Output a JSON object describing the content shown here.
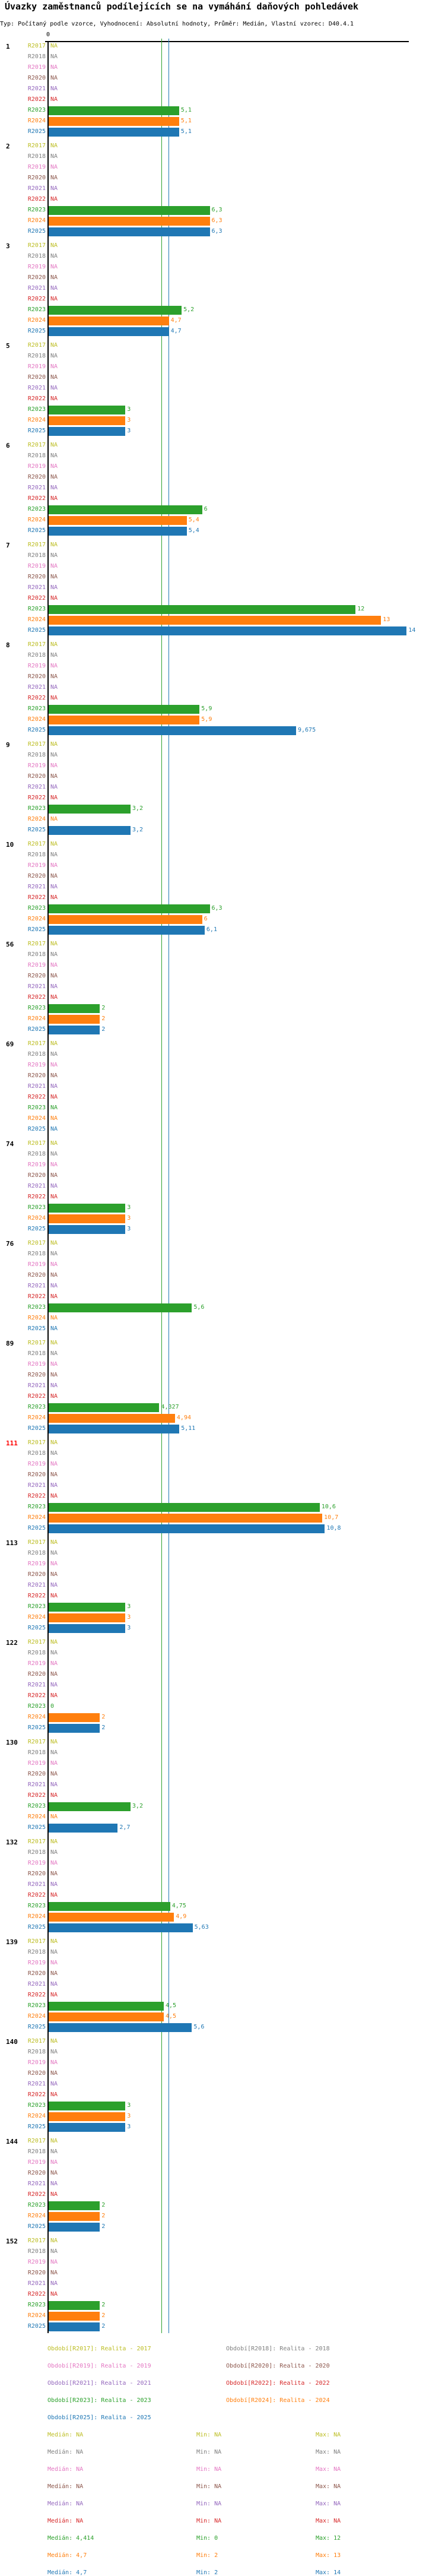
{
  "title": "Úvazky zaměstnanců podílejících se na vymáhání daňových pohledávek",
  "subtitle": "Typ: Počítaný podle vzorce, Vyhodnocení: Absolutní hodnoty, Průměr: Medián, Vlastní vzorec: D40.4.1",
  "chart_data": {
    "type": "bar",
    "orientation": "horizontal",
    "x_tick_label": "0",
    "xlim": [
      0,
      14
    ],
    "series": [
      {
        "name": "R2017",
        "legend": "Období[R2017]: Realita - 2017",
        "color": "#bcbd22"
      },
      {
        "name": "R2018",
        "legend": "Období[R2018]: Realita - 2018",
        "color": "#7f7f7f"
      },
      {
        "name": "R2019",
        "legend": "Období[R2019]: Realita - 2019",
        "color": "#e377c2"
      },
      {
        "name": "R2020",
        "legend": "Období[R2020]: Realita - 2020",
        "color": "#8c564b"
      },
      {
        "name": "R2021",
        "legend": "Období[R2021]: Realita - 2021",
        "color": "#9467bd"
      },
      {
        "name": "R2022",
        "legend": "Období[R2022]: Realita - 2022",
        "color": "#d62728"
      },
      {
        "name": "R2023",
        "legend": "Období[R2023]: Realita - 2023",
        "color": "#2ca02c"
      },
      {
        "name": "R2024",
        "legend": "Období[R2024]: Realita - 2024",
        "color": "#ff7f0e"
      },
      {
        "name": "R2025",
        "legend": "Období[R2025]: Realita - 2025",
        "color": "#1f77b4"
      }
    ],
    "na_label": "NA",
    "groups": [
      {
        "label": "1",
        "highlight": false,
        "values": [
          "NA",
          "NA",
          "NA",
          "NA",
          "NA",
          "NA",
          "5,1",
          "5,1",
          "5,1"
        ]
      },
      {
        "label": "2",
        "highlight": false,
        "values": [
          "NA",
          "NA",
          "NA",
          "NA",
          "NA",
          "NA",
          "6,3",
          "6,3",
          "6,3"
        ]
      },
      {
        "label": "3",
        "highlight": false,
        "values": [
          "NA",
          "NA",
          "NA",
          "NA",
          "NA",
          "NA",
          "5,2",
          "4,7",
          "4,7"
        ]
      },
      {
        "label": "5",
        "highlight": false,
        "values": [
          "NA",
          "NA",
          "NA",
          "NA",
          "NA",
          "NA",
          "3",
          "3",
          "3"
        ]
      },
      {
        "label": "6",
        "highlight": false,
        "values": [
          "NA",
          "NA",
          "NA",
          "NA",
          "NA",
          "NA",
          "6",
          "5,4",
          "5,4"
        ]
      },
      {
        "label": "7",
        "highlight": false,
        "values": [
          "NA",
          "NA",
          "NA",
          "NA",
          "NA",
          "NA",
          "12",
          "13",
          "14"
        ]
      },
      {
        "label": "8",
        "highlight": false,
        "values": [
          "NA",
          "NA",
          "NA",
          "NA",
          "NA",
          "NA",
          "5,9",
          "5,9",
          "9,675"
        ]
      },
      {
        "label": "9",
        "highlight": false,
        "values": [
          "NA",
          "NA",
          "NA",
          "NA",
          "NA",
          "NA",
          "3,2",
          "NA",
          "3,2"
        ]
      },
      {
        "label": "10",
        "highlight": false,
        "values": [
          "NA",
          "NA",
          "NA",
          "NA",
          "NA",
          "NA",
          "6,3",
          "6",
          "6,1"
        ]
      },
      {
        "label": "56",
        "highlight": false,
        "values": [
          "NA",
          "NA",
          "NA",
          "NA",
          "NA",
          "NA",
          "2",
          "2",
          "2"
        ]
      },
      {
        "label": "69",
        "highlight": false,
        "values": [
          "NA",
          "NA",
          "NA",
          "NA",
          "NA",
          "NA",
          "NA",
          "NA",
          "NA"
        ]
      },
      {
        "label": "74",
        "highlight": false,
        "values": [
          "NA",
          "NA",
          "NA",
          "NA",
          "NA",
          "NA",
          "3",
          "3",
          "3"
        ]
      },
      {
        "label": "76",
        "highlight": false,
        "values": [
          "NA",
          "NA",
          "NA",
          "NA",
          "NA",
          "NA",
          "5,6",
          "NA",
          "NA"
        ]
      },
      {
        "label": "89",
        "highlight": false,
        "values": [
          "NA",
          "NA",
          "NA",
          "NA",
          "NA",
          "NA",
          "4,327",
          "4,94",
          "5,11"
        ]
      },
      {
        "label": "111",
        "highlight": true,
        "values": [
          "NA",
          "NA",
          "NA",
          "NA",
          "NA",
          "NA",
          "10,6",
          "10,7",
          "10,8"
        ]
      },
      {
        "label": "113",
        "highlight": false,
        "values": [
          "NA",
          "NA",
          "NA",
          "NA",
          "NA",
          "NA",
          "3",
          "3",
          "3"
        ]
      },
      {
        "label": "122",
        "highlight": false,
        "values": [
          "NA",
          "NA",
          "NA",
          "NA",
          "NA",
          "NA",
          "0",
          "2",
          "2"
        ]
      },
      {
        "label": "130",
        "highlight": false,
        "values": [
          "NA",
          "NA",
          "NA",
          "NA",
          "NA",
          "NA",
          "3,2",
          "NA",
          "2,7"
        ]
      },
      {
        "label": "132",
        "highlight": false,
        "values": [
          "NA",
          "NA",
          "NA",
          "NA",
          "NA",
          "NA",
          "4,75",
          "4,9",
          "5,63"
        ]
      },
      {
        "label": "139",
        "highlight": false,
        "values": [
          "NA",
          "NA",
          "NA",
          "NA",
          "NA",
          "NA",
          "4,5",
          "4,5",
          "5,6"
        ]
      },
      {
        "label": "140",
        "highlight": false,
        "values": [
          "NA",
          "NA",
          "NA",
          "NA",
          "NA",
          "NA",
          "3",
          "3",
          "3"
        ]
      },
      {
        "label": "144",
        "highlight": false,
        "values": [
          "NA",
          "NA",
          "NA",
          "NA",
          "NA",
          "NA",
          "2",
          "2",
          "2"
        ]
      },
      {
        "label": "152",
        "highlight": false,
        "values": [
          "NA",
          "NA",
          "NA",
          "NA",
          "NA",
          "NA",
          "2",
          "2",
          "2"
        ]
      }
    ],
    "stats": [
      {
        "median": "Medián: NA",
        "min": "Min: NA",
        "max": "Max: NA"
      },
      {
        "median": "Medián: NA",
        "min": "Min: NA",
        "max": "Max: NA"
      },
      {
        "median": "Medián: NA",
        "min": "Min: NA",
        "max": "Max: NA"
      },
      {
        "median": "Medián: NA",
        "min": "Min: NA",
        "max": "Max: NA"
      },
      {
        "median": "Medián: NA",
        "min": "Min: NA",
        "max": "Max: NA"
      },
      {
        "median": "Medián: NA",
        "min": "Min: NA",
        "max": "Max: NA"
      },
      {
        "median": "Medián: 4,414",
        "min": "Min: 0",
        "max": "Max: 12"
      },
      {
        "median": "Medián: 4,7",
        "min": "Min: 2",
        "max": "Max: 13"
      },
      {
        "median": "Medián: 4,7",
        "min": "Min: 2",
        "max": "Max: 14"
      }
    ],
    "median_lines": [
      {
        "series": "R2023",
        "value": 4.414
      },
      {
        "series": "R2024",
        "value": 4.7
      },
      {
        "series": "R2025",
        "value": 4.7
      }
    ],
    "highlight_color": "#ff0000"
  }
}
